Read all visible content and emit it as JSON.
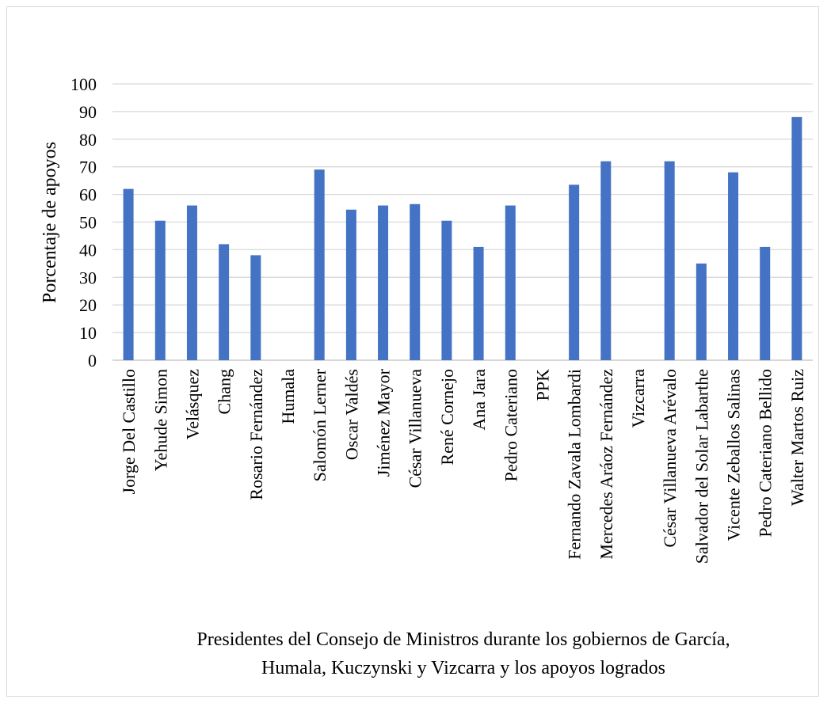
{
  "chart_data": {
    "type": "bar",
    "ylabel": "Porcentaje  de apoyos",
    "xlabel_lines": [
      "Presidentes del Consejo de Ministros durante los gobiernos de García,",
      "Humala, Kuczynski y Vizcarra y los apoyos logrados"
    ],
    "ylim": [
      0,
      100
    ],
    "yticks": [
      0,
      10,
      20,
      30,
      40,
      50,
      60,
      70,
      80,
      90,
      100
    ],
    "grid": true,
    "bar_color": "#4472C4",
    "categories": [
      "Jorge Del Castillo",
      "Yehude Simon",
      "Velásquez",
      "Chang",
      "Rosario Fernández",
      "Humala",
      "Salomón Lerner",
      "Oscar Valdés",
      "Jiménez Mayor",
      "César Villanueva",
      "René Cornejo",
      "Ana Jara",
      "Pedro Cateriano",
      "PPK",
      "Fernando Zavala Lombardi",
      "Mercedes Aráoz Fernández",
      "Vizcarra",
      "César Villanueva Arévalo",
      "Salvador del Solar Labarthe",
      "Vicente Zeballos Salinas",
      "Pedro Cateriano Bellido",
      "Walter Martos Ruiz"
    ],
    "values": [
      62,
      50.5,
      56,
      42,
      38,
      0,
      69,
      54.5,
      56,
      56.5,
      50.5,
      41,
      56,
      0,
      63.5,
      72,
      0,
      72,
      35,
      68,
      41,
      88
    ]
  }
}
